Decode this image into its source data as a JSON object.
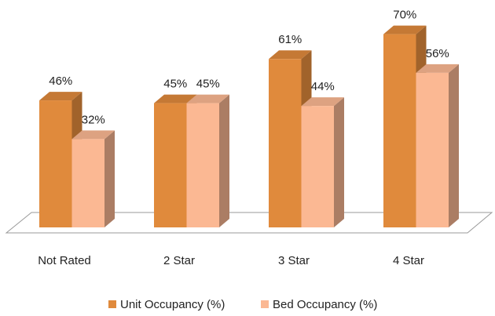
{
  "chart_data": {
    "type": "bar3d",
    "categories": [
      "Not Rated",
      "2 Star",
      "3 Star",
      "4 Star"
    ],
    "series": [
      {
        "name": "Unit Occupancy (%)",
        "color": "#e08a3c",
        "values": [
          46,
          45,
          61,
          70
        ],
        "value_labels": [
          "46%",
          "45%",
          "61%",
          "70%"
        ]
      },
      {
        "name": "Bed Occupancy (%)",
        "color": "#fbb893",
        "values": [
          32,
          45,
          44,
          56
        ],
        "value_labels": [
          "32%",
          "45%",
          "44%",
          "56%"
        ]
      }
    ],
    "legend": "bottom"
  }
}
